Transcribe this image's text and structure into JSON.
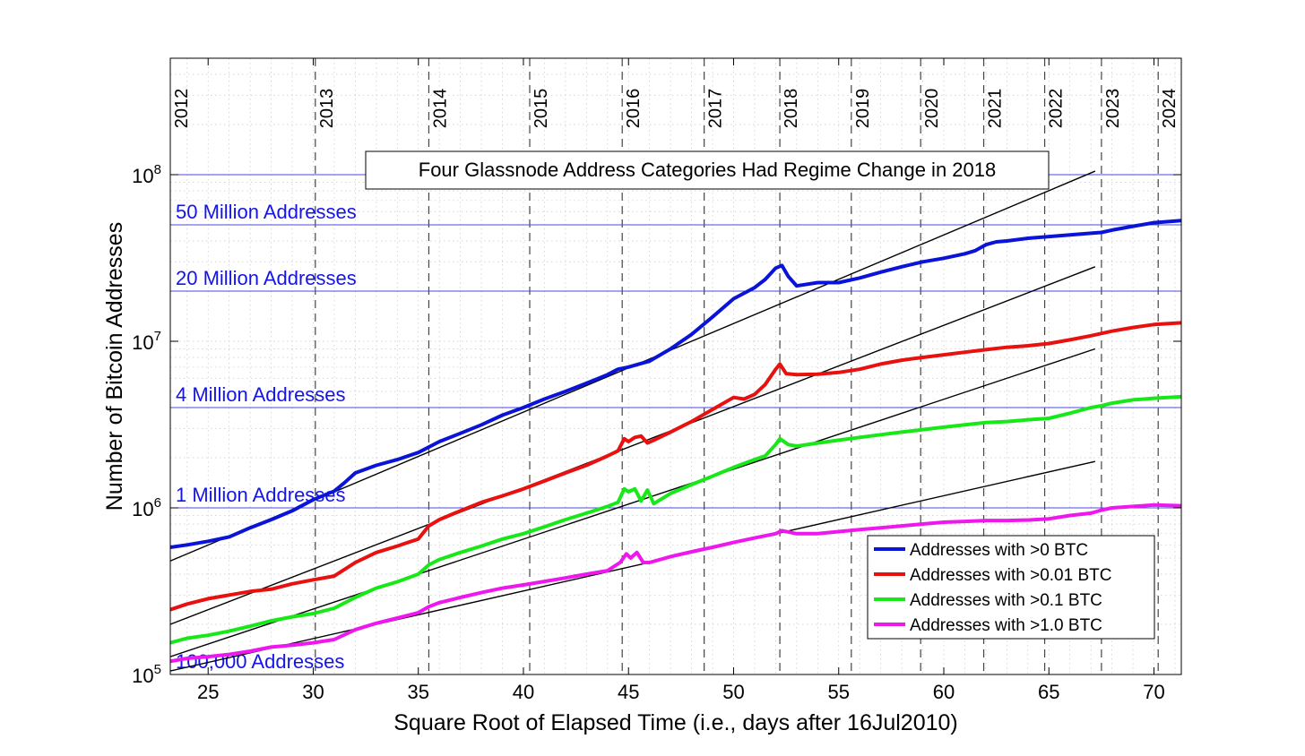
{
  "chart_data": {
    "type": "line",
    "title": "Four Glassnode Address Categories Had Regime Change in 2018",
    "xlabel": "Square Root of Elapsed Time (i.e., days after 16Jul2010)",
    "ylabel": "Number of Bitcoin Addresses",
    "xlim": [
      23.2,
      71.3
    ],
    "ylim": [
      100000,
      500000000
    ],
    "yscale": "log",
    "grid": true,
    "legend_position": "bottom-right",
    "x_ticks": [
      25,
      30,
      35,
      40,
      45,
      50,
      55,
      60,
      65,
      70
    ],
    "y_ticks": [
      {
        "value": 100000,
        "base": "10",
        "exp": "5"
      },
      {
        "value": 1000000,
        "base": "10",
        "exp": "6"
      },
      {
        "value": 10000000,
        "base": "10",
        "exp": "7"
      },
      {
        "value": 100000000,
        "base": "10",
        "exp": "8"
      }
    ],
    "year_markers": [
      {
        "label": "2012",
        "x": 23.2
      },
      {
        "label": "2013",
        "x": 30.1
      },
      {
        "label": "2014",
        "x": 35.5
      },
      {
        "label": "2015",
        "x": 40.3
      },
      {
        "label": "2016",
        "x": 44.7
      },
      {
        "label": "2017",
        "x": 48.6
      },
      {
        "label": "2018",
        "x": 52.2
      },
      {
        "label": "2019",
        "x": 55.6
      },
      {
        "label": "2020",
        "x": 58.9
      },
      {
        "label": "2021",
        "x": 61.9
      },
      {
        "label": "2022",
        "x": 64.8
      },
      {
        "label": "2023",
        "x": 67.5
      },
      {
        "label": "2024",
        "x": 70.2
      }
    ],
    "reference_lines": [
      {
        "label": "100,000 Addresses",
        "value": 100000
      },
      {
        "label": "1 Million Addresses",
        "value": 1000000
      },
      {
        "label": "4 Million Addresses",
        "value": 4000000
      },
      {
        "label": "20 Million Addresses",
        "value": 20000000
      },
      {
        "label": "50 Million Addresses",
        "value": 50000000
      },
      {
        "label": "",
        "value": 100000000
      }
    ],
    "trend_lines": [
      {
        "x": [
          23.2,
          67.2
        ],
        "y": [
          480000,
          105000000
        ]
      },
      {
        "x": [
          23.2,
          67.2
        ],
        "y": [
          200000,
          28000000
        ]
      },
      {
        "x": [
          23.2,
          67.2
        ],
        "y": [
          128000,
          9000000
        ]
      },
      {
        "x": [
          23.2,
          67.2
        ],
        "y": [
          105000,
          1900000
        ]
      }
    ],
    "series": [
      {
        "name": "Addresses with >0 BTC",
        "color": "#0a14d8",
        "x": [
          23.2,
          24.0,
          25.0,
          26.0,
          27.0,
          28.0,
          29.0,
          30.0,
          31.0,
          31.5,
          32.0,
          33.0,
          34.0,
          35.0,
          36.0,
          37.0,
          38.0,
          39.0,
          40.0,
          41.0,
          42.0,
          43.0,
          44.0,
          44.5,
          45.0,
          45.5,
          46.0,
          47.0,
          48.0,
          49.0,
          50.0,
          51.0,
          51.5,
          52.0,
          52.3,
          52.6,
          53.0,
          53.5,
          54.0,
          55.0,
          56.0,
          57.0,
          58.0,
          59.0,
          60.0,
          61.0,
          61.5,
          62.0,
          62.5,
          63.0,
          64.0,
          65.0,
          66.0,
          67.0,
          67.5,
          68.0,
          69.0,
          70.0,
          71.3
        ],
        "y": [
          580000,
          600000,
          630000,
          670000,
          760000,
          850000,
          960000,
          1120000,
          1260000,
          1420000,
          1620000,
          1800000,
          1950000,
          2150000,
          2500000,
          2800000,
          3150000,
          3600000,
          4000000,
          4500000,
          5000000,
          5600000,
          6300000,
          6800000,
          7000000,
          7300000,
          7600000,
          9000000,
          11000000,
          14000000,
          18000000,
          21000000,
          23500000,
          27500000,
          28500000,
          24500000,
          21500000,
          22000000,
          22500000,
          22500000,
          24000000,
          26000000,
          28000000,
          30000000,
          31500000,
          33500000,
          35000000,
          38000000,
          39500000,
          40000000,
          41500000,
          42500000,
          43500000,
          44500000,
          45000000,
          46500000,
          49000000,
          51500000,
          53000000
        ]
      },
      {
        "name": "Addresses with >0.01 BTC",
        "color": "#e8110f",
        "x": [
          23.2,
          24.0,
          25.0,
          26.0,
          27.0,
          28.0,
          29.0,
          30.0,
          31.0,
          32.0,
          33.0,
          34.0,
          34.5,
          35.0,
          35.5,
          36.0,
          37.0,
          38.0,
          39.0,
          40.0,
          41.0,
          42.0,
          43.0,
          44.0,
          44.5,
          44.8,
          45.0,
          45.3,
          45.6,
          45.9,
          46.2,
          47.0,
          48.0,
          49.0,
          50.0,
          50.5,
          51.0,
          51.5,
          52.0,
          52.2,
          52.5,
          53.0,
          54.0,
          55.0,
          56.0,
          57.0,
          58.0,
          59.0,
          60.0,
          61.0,
          62.0,
          63.0,
          64.0,
          65.0,
          66.0,
          67.0,
          68.0,
          69.0,
          70.0,
          71.3
        ],
        "y": [
          245000,
          265000,
          285000,
          300000,
          315000,
          325000,
          350000,
          370000,
          390000,
          470000,
          540000,
          590000,
          620000,
          650000,
          780000,
          850000,
          960000,
          1080000,
          1180000,
          1300000,
          1450000,
          1620000,
          1800000,
          2050000,
          2200000,
          2600000,
          2500000,
          2650000,
          2700000,
          2450000,
          2550000,
          2850000,
          3300000,
          3900000,
          4600000,
          4500000,
          4800000,
          5500000,
          6800000,
          7300000,
          6400000,
          6300000,
          6350000,
          6500000,
          6800000,
          7300000,
          7700000,
          8000000,
          8300000,
          8600000,
          8900000,
          9200000,
          9400000,
          9700000,
          10200000,
          10800000,
          11500000,
          12100000,
          12600000,
          12900000
        ]
      },
      {
        "name": "Addresses with >0.1 BTC",
        "color": "#18e818",
        "x": [
          23.2,
          24.0,
          25.0,
          26.0,
          27.0,
          28.0,
          29.0,
          30.0,
          31.0,
          32.0,
          33.0,
          34.0,
          35.0,
          35.5,
          36.0,
          37.0,
          38.0,
          39.0,
          40.0,
          41.0,
          42.0,
          43.0,
          44.0,
          44.5,
          44.8,
          45.0,
          45.3,
          45.6,
          45.9,
          46.2,
          47.0,
          48.0,
          49.0,
          50.0,
          51.0,
          51.5,
          52.0,
          52.2,
          52.6,
          53.0,
          54.0,
          55.0,
          56.0,
          57.0,
          58.0,
          59.0,
          60.0,
          61.0,
          62.0,
          63.0,
          64.0,
          65.0,
          66.0,
          67.0,
          67.5,
          68.0,
          69.0,
          70.0,
          71.3
        ],
        "y": [
          155000,
          165000,
          172000,
          182000,
          195000,
          210000,
          222000,
          232000,
          250000,
          290000,
          330000,
          360000,
          400000,
          455000,
          490000,
          540000,
          590000,
          650000,
          700000,
          770000,
          850000,
          930000,
          1020000,
          1080000,
          1300000,
          1250000,
          1300000,
          1100000,
          1280000,
          1060000,
          1220000,
          1380000,
          1550000,
          1750000,
          1950000,
          2050000,
          2400000,
          2600000,
          2400000,
          2350000,
          2450000,
          2550000,
          2650000,
          2750000,
          2850000,
          2950000,
          3050000,
          3150000,
          3250000,
          3300000,
          3380000,
          3450000,
          3700000,
          4000000,
          4100000,
          4250000,
          4450000,
          4550000,
          4650000
        ]
      },
      {
        "name": "Addresses with >1.0 BTC",
        "color": "#ee18ee",
        "x": [
          23.2,
          24.0,
          25.0,
          26.0,
          27.0,
          28.0,
          29.0,
          30.0,
          31.0,
          32.0,
          33.0,
          34.0,
          35.0,
          35.5,
          36.0,
          37.0,
          38.0,
          39.0,
          40.0,
          41.0,
          42.0,
          43.0,
          44.0,
          44.6,
          44.9,
          45.1,
          45.4,
          45.7,
          46.0,
          47.0,
          48.0,
          49.0,
          50.0,
          51.0,
          52.0,
          52.3,
          53.0,
          54.0,
          55.0,
          56.0,
          57.0,
          58.0,
          59.0,
          60.0,
          61.0,
          62.0,
          63.0,
          64.0,
          65.0,
          66.0,
          67.0,
          67.5,
          68.0,
          69.0,
          70.0,
          71.3
        ],
        "y": [
          120000,
          125000,
          128000,
          132000,
          138000,
          146000,
          150000,
          155000,
          162000,
          186000,
          203000,
          218000,
          235000,
          255000,
          270000,
          290000,
          310000,
          330000,
          345000,
          362000,
          380000,
          400000,
          420000,
          470000,
          530000,
          500000,
          540000,
          470000,
          470000,
          510000,
          545000,
          580000,
          620000,
          660000,
          700000,
          730000,
          700000,
          700000,
          720000,
          740000,
          760000,
          780000,
          800000,
          820000,
          830000,
          840000,
          840000,
          845000,
          860000,
          900000,
          930000,
          970000,
          1000000,
          1020000,
          1040000,
          1030000
        ]
      }
    ]
  }
}
